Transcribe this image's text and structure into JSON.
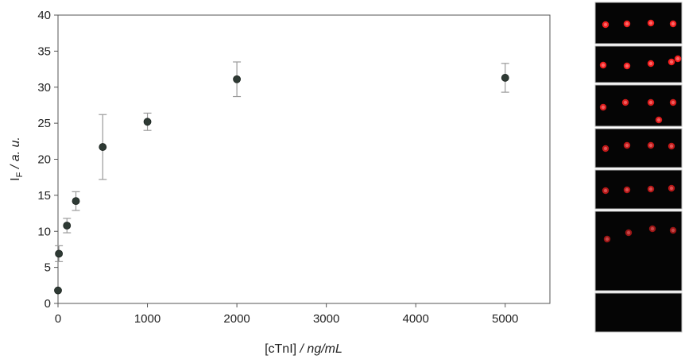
{
  "chart_data": {
    "type": "scatter",
    "xlabel": {
      "main": "[cTnI]",
      "unit": " / ng/mL"
    },
    "ylabel": {
      "symbol": "I",
      "subscript": "F",
      "unit": " / a. u."
    },
    "xlim": [
      0,
      5500
    ],
    "ylim": [
      0,
      40
    ],
    "xticks": [
      0,
      1000,
      2000,
      3000,
      4000,
      5000
    ],
    "yticks": [
      0,
      5,
      10,
      15,
      20,
      25,
      30,
      35,
      40
    ],
    "grid": false,
    "legend": "none",
    "series": [
      {
        "color": "#2e3a34",
        "error_color": "#9a9a9a",
        "points": [
          {
            "x": 0,
            "y": 1.8,
            "err": 0
          },
          {
            "x": 10,
            "y": 6.9,
            "err": 1.1
          },
          {
            "x": 100,
            "y": 10.8,
            "err": 1.0
          },
          {
            "x": 200,
            "y": 14.2,
            "err": 1.3
          },
          {
            "x": 500,
            "y": 21.7,
            "err": 4.5
          },
          {
            "x": 1000,
            "y": 25.2,
            "err": 1.2
          },
          {
            "x": 2000,
            "y": 31.1,
            "err": 2.4
          },
          {
            "x": 5000,
            "y": 31.3,
            "err": 2.0
          }
        ]
      }
    ]
  },
  "inset_images": {
    "description_label": "",
    "panels": [
      {
        "spots": 4,
        "brightness": 0.95
      },
      {
        "spots": 5,
        "brightness": 0.95
      },
      {
        "spots": 5,
        "brightness": 0.85
      },
      {
        "spots": 4,
        "brightness": 0.75
      },
      {
        "spots": 4,
        "brightness": 0.7
      },
      {
        "spots": 4,
        "brightness": 0.6
      },
      {
        "spots": 0,
        "brightness": 0
      }
    ],
    "spot_color": "#ff2020",
    "background": "#050505"
  }
}
